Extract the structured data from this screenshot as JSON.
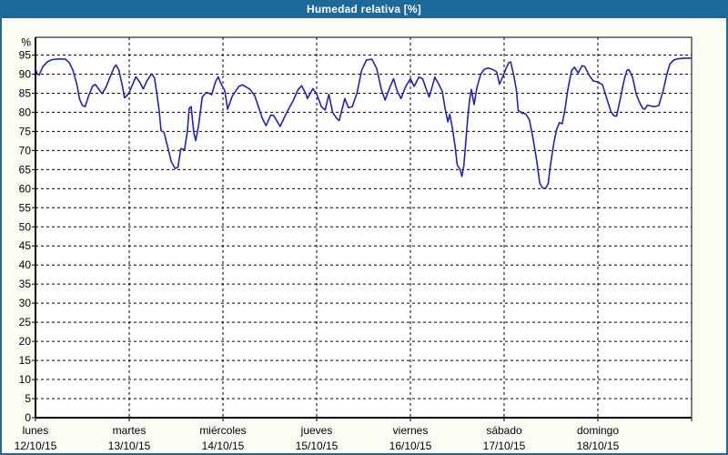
{
  "window": {
    "title": "Humedad relativa [%]"
  },
  "colors": {
    "titlebar_bg": "#1d699a",
    "titlebar_text": "#ffffff",
    "frame_border": "#1d699a",
    "page_bg": "#fbfdf5",
    "plot_bg": "#ffffff",
    "grid": "#000000",
    "axis": "#000000",
    "line": "#2121bd",
    "label_text": "#000000"
  },
  "chart_data": {
    "type": "line",
    "title": "Humedad relativa [%]",
    "ylabel": "%",
    "ylim": [
      0,
      99.5
    ],
    "yticks": [
      0,
      5,
      10,
      15,
      20,
      25,
      30,
      35,
      40,
      45,
      50,
      55,
      60,
      65,
      70,
      75,
      80,
      85,
      90,
      95
    ],
    "grid": "dashed",
    "legend": "none",
    "x_unit": "days from 12/10/15 00:00",
    "days": [
      {
        "name": "lunes",
        "date": "12/10/15"
      },
      {
        "name": "martes",
        "date": "13/10/15"
      },
      {
        "name": "miércoles",
        "date": "14/10/15"
      },
      {
        "name": "jueves",
        "date": "15/10/15"
      },
      {
        "name": "viernes",
        "date": "16/10/15"
      },
      {
        "name": "sábado",
        "date": "17/10/15"
      },
      {
        "name": "domingo",
        "date": "18/10/15"
      }
    ],
    "points": [
      [
        0.0,
        91.5
      ],
      [
        0.02,
        90.0
      ],
      [
        0.04,
        89.8
      ],
      [
        0.08,
        92.0
      ],
      [
        0.13,
        93.3
      ],
      [
        0.18,
        93.8
      ],
      [
        0.26,
        94.0
      ],
      [
        0.32,
        93.9
      ],
      [
        0.36,
        93.0
      ],
      [
        0.4,
        91.0
      ],
      [
        0.44,
        87.5
      ],
      [
        0.47,
        83.5
      ],
      [
        0.5,
        81.8
      ],
      [
        0.53,
        81.5
      ],
      [
        0.57,
        84.5
      ],
      [
        0.61,
        86.9
      ],
      [
        0.64,
        87.3
      ],
      [
        0.67,
        86.2
      ],
      [
        0.71,
        84.9
      ],
      [
        0.75,
        86.5
      ],
      [
        0.8,
        89.5
      ],
      [
        0.84,
        91.8
      ],
      [
        0.86,
        92.4
      ],
      [
        0.89,
        91.0
      ],
      [
        0.93,
        86.5
      ],
      [
        0.95,
        83.8
      ],
      [
        0.98,
        84.5
      ],
      [
        1.0,
        85.2
      ],
      [
        1.04,
        87.5
      ],
      [
        1.07,
        89.3
      ],
      [
        1.11,
        88.0
      ],
      [
        1.15,
        86.1
      ],
      [
        1.19,
        88.3
      ],
      [
        1.24,
        90.1
      ],
      [
        1.27,
        89.0
      ],
      [
        1.3,
        84.0
      ],
      [
        1.32,
        80.2
      ],
      [
        1.34,
        75.2
      ],
      [
        1.37,
        74.8
      ],
      [
        1.41,
        71.0
      ],
      [
        1.45,
        67.0
      ],
      [
        1.49,
        65.3
      ],
      [
        1.52,
        65.6
      ],
      [
        1.55,
        70.5
      ],
      [
        1.59,
        70.2
      ],
      [
        1.62,
        75.0
      ],
      [
        1.64,
        81.0
      ],
      [
        1.66,
        81.5
      ],
      [
        1.69,
        74.5
      ],
      [
        1.71,
        72.6
      ],
      [
        1.74,
        76.5
      ],
      [
        1.78,
        84.0
      ],
      [
        1.82,
        85.2
      ],
      [
        1.85,
        85.0
      ],
      [
        1.88,
        84.6
      ],
      [
        1.92,
        88.0
      ],
      [
        1.95,
        89.3
      ],
      [
        1.98,
        87.5
      ],
      [
        2.02,
        85.6
      ],
      [
        2.05,
        80.8
      ],
      [
        2.1,
        84.3
      ],
      [
        2.17,
        86.8
      ],
      [
        2.21,
        87.2
      ],
      [
        2.29,
        86.0
      ],
      [
        2.34,
        84.3
      ],
      [
        2.42,
        78.4
      ],
      [
        2.46,
        76.5
      ],
      [
        2.51,
        79.3
      ],
      [
        2.54,
        79.2
      ],
      [
        2.61,
        76.3
      ],
      [
        2.68,
        79.9
      ],
      [
        2.75,
        83.1
      ],
      [
        2.8,
        85.9
      ],
      [
        2.84,
        87.0
      ],
      [
        2.89,
        84.5
      ],
      [
        2.9,
        83.6
      ],
      [
        2.96,
        86.2
      ],
      [
        3.0,
        84.8
      ],
      [
        3.05,
        81.5
      ],
      [
        3.09,
        80.6
      ],
      [
        3.13,
        84.7
      ],
      [
        3.17,
        80.0
      ],
      [
        3.21,
        78.5
      ],
      [
        3.24,
        77.8
      ],
      [
        3.3,
        83.6
      ],
      [
        3.34,
        81.2
      ],
      [
        3.38,
        81.5
      ],
      [
        3.43,
        85.0
      ],
      [
        3.48,
        91.0
      ],
      [
        3.53,
        93.7
      ],
      [
        3.59,
        93.9
      ],
      [
        3.64,
        91.5
      ],
      [
        3.69,
        86.0
      ],
      [
        3.73,
        83.2
      ],
      [
        3.78,
        86.5
      ],
      [
        3.82,
        88.8
      ],
      [
        3.86,
        85.5
      ],
      [
        3.9,
        83.6
      ],
      [
        3.95,
        86.8
      ],
      [
        4.0,
        88.8
      ],
      [
        4.04,
        86.8
      ],
      [
        4.09,
        89.2
      ],
      [
        4.13,
        88.8
      ],
      [
        4.17,
        86.0
      ],
      [
        4.2,
        84.0
      ],
      [
        4.23,
        86.5
      ],
      [
        4.26,
        89.2
      ],
      [
        4.3,
        87.5
      ],
      [
        4.34,
        85.5
      ],
      [
        4.37,
        81.0
      ],
      [
        4.4,
        77.5
      ],
      [
        4.42,
        79.5
      ],
      [
        4.45,
        75.5
      ],
      [
        4.48,
        70.5
      ],
      [
        4.5,
        66.2
      ],
      [
        4.53,
        65.0
      ],
      [
        4.55,
        63.2
      ],
      [
        4.57,
        66.0
      ],
      [
        4.59,
        72.0
      ],
      [
        4.61,
        78.0
      ],
      [
        4.63,
        83.0
      ],
      [
        4.65,
        86.0
      ],
      [
        4.68,
        82.0
      ],
      [
        4.71,
        86.5
      ],
      [
        4.75,
        90.0
      ],
      [
        4.79,
        91.3
      ],
      [
        4.83,
        91.6
      ],
      [
        4.88,
        91.2
      ],
      [
        4.92,
        90.6
      ],
      [
        4.95,
        87.4
      ],
      [
        4.98,
        89.0
      ],
      [
        5.02,
        91.5
      ],
      [
        5.05,
        93.0
      ],
      [
        5.07,
        93.2
      ],
      [
        5.1,
        90.0
      ],
      [
        5.13,
        86.0
      ],
      [
        5.15,
        80.5
      ],
      [
        5.19,
        79.8
      ],
      [
        5.23,
        79.6
      ],
      [
        5.27,
        78.0
      ],
      [
        5.31,
        73.0
      ],
      [
        5.35,
        67.0
      ],
      [
        5.38,
        61.5
      ],
      [
        5.41,
        60.2
      ],
      [
        5.44,
        60.0
      ],
      [
        5.47,
        61.3
      ],
      [
        5.49,
        65.5
      ],
      [
        5.53,
        72.0
      ],
      [
        5.56,
        75.5
      ],
      [
        5.59,
        77.3
      ],
      [
        5.62,
        77.0
      ],
      [
        5.65,
        81.0
      ],
      [
        5.68,
        86.0
      ],
      [
        5.72,
        91.0
      ],
      [
        5.75,
        91.8
      ],
      [
        5.79,
        90.3
      ],
      [
        5.83,
        92.2
      ],
      [
        5.86,
        92.0
      ],
      [
        5.91,
        89.6
      ],
      [
        5.95,
        88.2
      ],
      [
        6.0,
        88.0
      ],
      [
        6.05,
        87.2
      ],
      [
        6.1,
        83.2
      ],
      [
        6.14,
        80.2
      ],
      [
        6.17,
        79.1
      ],
      [
        6.2,
        79.0
      ],
      [
        6.24,
        83.6
      ],
      [
        6.28,
        88.4
      ],
      [
        6.31,
        91.0
      ],
      [
        6.33,
        91.2
      ],
      [
        6.37,
        89.2
      ],
      [
        6.41,
        84.7
      ],
      [
        6.45,
        82.3
      ],
      [
        6.48,
        81.0
      ],
      [
        6.5,
        80.8
      ],
      [
        6.53,
        81.9
      ],
      [
        6.57,
        81.6
      ],
      [
        6.61,
        81.5
      ],
      [
        6.65,
        81.8
      ],
      [
        6.7,
        86.0
      ],
      [
        6.74,
        90.3
      ],
      [
        6.77,
        92.7
      ],
      [
        6.81,
        93.7
      ],
      [
        6.85,
        94.0
      ],
      [
        6.92,
        94.2
      ],
      [
        7.0,
        94.2
      ]
    ]
  }
}
